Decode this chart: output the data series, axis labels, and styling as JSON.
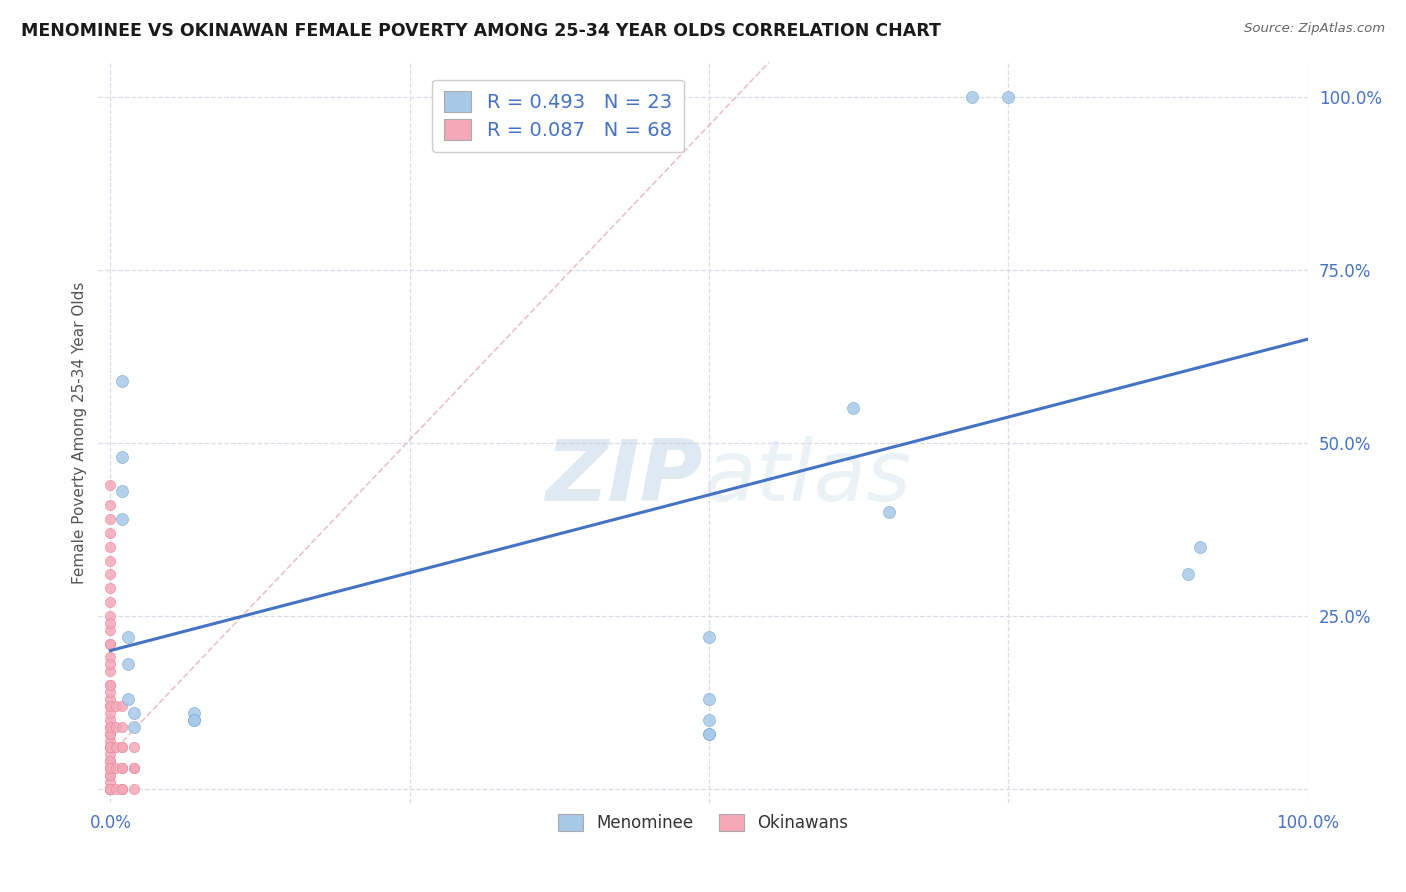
{
  "title": "MENOMINEE VS OKINAWAN FEMALE POVERTY AMONG 25-34 YEAR OLDS CORRELATION CHART",
  "source": "Source: ZipAtlas.com",
  "ylabel": "Female Poverty Among 25-34 Year Olds",
  "xlim": [
    -0.01,
    1.0
  ],
  "ylim": [
    -0.02,
    1.05
  ],
  "menominee_color": "#a8c8e8",
  "okinawan_color": "#f4a8b8",
  "menominee_edge": "#7aacd4",
  "okinawan_edge": "#e88ca0",
  "menominee_R": 0.493,
  "menominee_N": 23,
  "okinawan_R": 0.087,
  "okinawan_N": 68,
  "trend_blue_x0": 0.0,
  "trend_blue_y0": 0.2,
  "trend_blue_x1": 1.0,
  "trend_blue_y1": 0.65,
  "trend_pink_x0": 0.0,
  "trend_pink_y0": 0.05,
  "trend_pink_x1": 0.55,
  "trend_pink_y1": 1.05,
  "menominee_x": [
    0.01,
    0.01,
    0.01,
    0.01,
    0.015,
    0.015,
    0.015,
    0.02,
    0.02,
    0.07,
    0.07,
    0.07,
    0.62,
    0.65,
    0.72,
    0.75,
    0.9,
    0.91,
    0.5,
    0.5,
    0.5,
    0.5,
    0.5
  ],
  "menominee_y": [
    0.59,
    0.48,
    0.43,
    0.39,
    0.22,
    0.18,
    0.13,
    0.11,
    0.09,
    0.11,
    0.1,
    0.1,
    0.55,
    0.4,
    1.0,
    1.0,
    0.31,
    0.35,
    0.22,
    0.13,
    0.08,
    0.1,
    0.08
  ],
  "okinawan_x": [
    0.0,
    0.0,
    0.0,
    0.0,
    0.0,
    0.0,
    0.0,
    0.0,
    0.0,
    0.0,
    0.0,
    0.0,
    0.0,
    0.0,
    0.0,
    0.0,
    0.0,
    0.0,
    0.0,
    0.0,
    0.0,
    0.0,
    0.0,
    0.0,
    0.0,
    0.0,
    0.0,
    0.0,
    0.0,
    0.0,
    0.0,
    0.0,
    0.0,
    0.0,
    0.0,
    0.0,
    0.0,
    0.0,
    0.0,
    0.0,
    0.0,
    0.0,
    0.0,
    0.0,
    0.0,
    0.0,
    0.0,
    0.0,
    0.0,
    0.0,
    0.005,
    0.005,
    0.005,
    0.005,
    0.005,
    0.01,
    0.01,
    0.01,
    0.01,
    0.01,
    0.01,
    0.01,
    0.01,
    0.01,
    0.02,
    0.02,
    0.02,
    0.02
  ],
  "okinawan_y": [
    0.0,
    0.01,
    0.02,
    0.03,
    0.04,
    0.05,
    0.06,
    0.07,
    0.08,
    0.09,
    0.1,
    0.11,
    0.12,
    0.13,
    0.14,
    0.15,
    0.17,
    0.19,
    0.21,
    0.23,
    0.25,
    0.27,
    0.29,
    0.31,
    0.33,
    0.35,
    0.37,
    0.39,
    0.41,
    0.44,
    0.0,
    0.02,
    0.04,
    0.06,
    0.08,
    0.0,
    0.03,
    0.06,
    0.09,
    0.12,
    0.15,
    0.18,
    0.21,
    0.24,
    0.0,
    0.03,
    0.06,
    0.0,
    0.03,
    0.0,
    0.0,
    0.03,
    0.06,
    0.09,
    0.12,
    0.0,
    0.03,
    0.06,
    0.09,
    0.12,
    0.0,
    0.03,
    0.06,
    0.0,
    0.0,
    0.03,
    0.06,
    0.03
  ],
  "background_color": "#ffffff",
  "grid_color": "#d8dce8",
  "watermark_color": "#ddeaf5"
}
